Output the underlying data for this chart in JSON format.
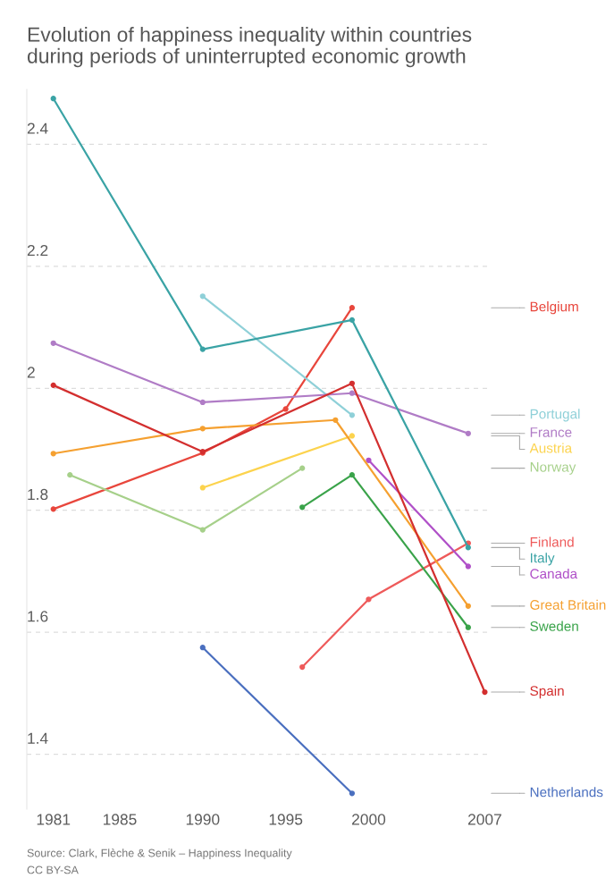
{
  "chart_data": {
    "type": "line",
    "title": "Evolution of happiness inequality within countries\nduring periods of uninterrupted economic growth",
    "xlim": [
      1979.4,
      2007.3
    ],
    "xticks": [
      1981,
      1985,
      1990,
      1995,
      2000,
      2007
    ],
    "ylim": [
      1.31,
      2.49
    ],
    "yticks": [
      1.4,
      1.6,
      1.8,
      2,
      2.2,
      2.4
    ],
    "grid": "y",
    "legend": false,
    "marker": "circle",
    "line_style": "solid",
    "annotations": [
      "Source: Clark, Flèche & Senik – Happiness Inequality",
      "CC BY-SA"
    ],
    "series": [
      {
        "name": "Belgium",
        "color": "#e8463c",
        "x": [
          1981,
          1990,
          1995,
          1999
        ],
        "values": [
          1.802,
          1.894,
          1.966,
          2.132
        ]
      },
      {
        "name": "Portugal",
        "color": "#8fd0d8",
        "x": [
          1990,
          1999
        ],
        "values": [
          2.151,
          1.956
        ]
      },
      {
        "name": "France",
        "color": "#b07cc6",
        "x": [
          1981,
          1990,
          1999,
          2006
        ],
        "values": [
          2.074,
          1.977,
          1.992,
          1.926
        ]
      },
      {
        "name": "Austria",
        "color": "#fcd34d",
        "x": [
          1990,
          1999
        ],
        "values": [
          1.837,
          1.922
        ]
      },
      {
        "name": "Norway",
        "color": "#a6d08a",
        "x": [
          1982,
          1990,
          1996
        ],
        "values": [
          1.858,
          1.768,
          1.869
        ]
      },
      {
        "name": "Finland",
        "color": "#ee5a5a",
        "x": [
          1996,
          2000,
          2006
        ],
        "values": [
          1.543,
          1.654,
          1.746
        ]
      },
      {
        "name": "Italy",
        "color": "#3aa3a5",
        "x": [
          1981,
          1990,
          1999,
          2006
        ],
        "values": [
          2.475,
          2.064,
          2.112,
          1.739
        ]
      },
      {
        "name": "Canada",
        "color": "#b050c8",
        "x": [
          2000,
          2006
        ],
        "values": [
          1.882,
          1.708
        ]
      },
      {
        "name": "Great Britain",
        "color": "#f5a030",
        "x": [
          1981,
          1990,
          1998,
          2006
        ],
        "values": [
          1.893,
          1.934,
          1.948,
          1.643
        ]
      },
      {
        "name": "Sweden",
        "color": "#3aa34a",
        "x": [
          1996,
          1999,
          2006
        ],
        "values": [
          1.805,
          1.858,
          1.608
        ]
      },
      {
        "name": "Spain",
        "color": "#d32f2f",
        "x": [
          1981,
          1990,
          1999,
          2007
        ],
        "values": [
          2.005,
          1.896,
          2.008,
          1.502
        ]
      },
      {
        "name": "Netherlands",
        "color": "#4a6fbf",
        "x": [
          1990,
          1999
        ],
        "values": [
          1.575,
          1.336
        ]
      }
    ]
  }
}
